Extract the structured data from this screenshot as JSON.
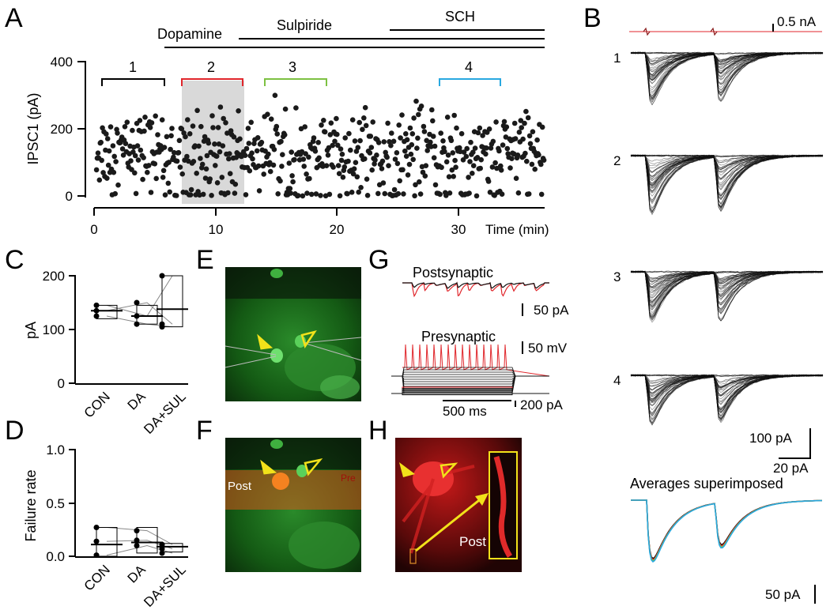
{
  "panel_labels": {
    "A": "A",
    "B": "B",
    "C": "C",
    "D": "D",
    "E": "E",
    "F": "F",
    "G": "G",
    "H": "H"
  },
  "panel_a": {
    "treatments": {
      "dopamine": "Dopamine",
      "sulpiride": "Sulpiride",
      "sch": "SCH"
    },
    "ylabel": "IPSC1 (pA)",
    "xlabel": "Time (min)",
    "yticks": [
      "0",
      "200",
      "400"
    ],
    "xticks": [
      "0",
      "10",
      "20",
      "30"
    ],
    "segments": [
      "1",
      "2",
      "3",
      "4"
    ],
    "colors": {
      "seg1": "#000000",
      "seg2": "#e0262b",
      "seg3": "#7dc142",
      "seg4": "#29a8e0",
      "highlight": "#d9d9d9"
    }
  },
  "panel_b": {
    "scale_top": "0.5 nA",
    "trace_labels": [
      "1",
      "2",
      "3",
      "4"
    ],
    "scale_v": "100 pA",
    "scale_h": "20 pA",
    "avg_title": "Averages superimposed",
    "avg_scale": "50 pA"
  },
  "panel_c": {
    "ylabel": "pA",
    "yticks": [
      "0",
      "100",
      "200"
    ],
    "categories": [
      "CON",
      "DA",
      "DA+SUL"
    ]
  },
  "panel_d": {
    "ylabel": "Failure rate",
    "yticks": [
      "0.0",
      "0.5",
      "1.0"
    ],
    "categories": [
      "CON",
      "DA",
      "DA+SUL"
    ]
  },
  "panel_f": {
    "post": "Post",
    "pre": "Pre"
  },
  "panel_g": {
    "post_label": "Postsynaptic",
    "pre_label": "Presynaptic",
    "scale_pa": "50 pA",
    "scale_mv": "50 mV",
    "scale_ms": "500 ms",
    "scale_inj": "200 pA"
  },
  "panel_h": {
    "post": "Post"
  },
  "chart_data": [
    {
      "type": "scatter",
      "panel": "A",
      "xlabel": "Time (min)",
      "ylabel": "IPSC1 (pA)",
      "xlim": [
        0,
        32
      ],
      "ylim": [
        0,
        400
      ],
      "shaded_region": [
        7.5,
        12.2
      ],
      "segment_ranges": [
        [
          0.5,
          5
        ],
        [
          7,
          11.2
        ],
        [
          12.7,
          17.6
        ],
        [
          27.5,
          31.6
        ]
      ],
      "note": "approx. 600 points, IPSC amplitudes ranging 0-330 pA, mean ~130 pA"
    },
    {
      "type": "box",
      "panel": "C",
      "categories": [
        "CON",
        "DA",
        "DA+SUL"
      ],
      "ylabel": "pA",
      "ylim": [
        0,
        200
      ],
      "medians": [
        135,
        125,
        138
      ],
      "boxes": [
        [
          120,
          145
        ],
        [
          110,
          145
        ],
        [
          105,
          200
        ]
      ],
      "points": [
        [
          125,
          135,
          145
        ],
        [
          110,
          150,
          125
        ],
        [
          105,
          110,
          200
        ]
      ]
    },
    {
      "type": "box",
      "panel": "D",
      "categories": [
        "CON",
        "DA",
        "DA+SUL"
      ],
      "ylabel": "Failure rate",
      "ylim": [
        0,
        1
      ],
      "medians": [
        0.11,
        0.13,
        0.09
      ],
      "boxes": [
        [
          0.0,
          0.27
        ],
        [
          0.03,
          0.27
        ],
        [
          0.04,
          0.12
        ]
      ],
      "points": [
        [
          0.01,
          0.14,
          0.27
        ],
        [
          0.1,
          0.15,
          0.24
        ],
        [
          0.03,
          0.07,
          0.11
        ]
      ]
    }
  ]
}
